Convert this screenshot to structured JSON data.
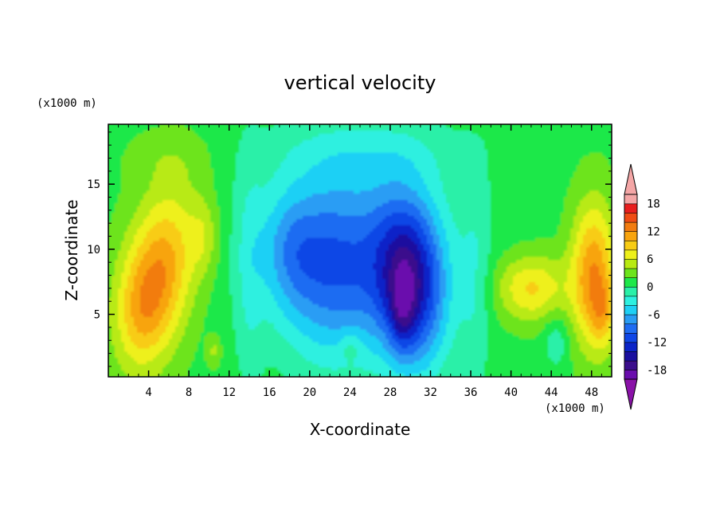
{
  "chart_data": {
    "type": "heatmap",
    "subtype": "filled-contour",
    "title": "vertical velocity",
    "xlabel": "X-coordinate",
    "ylabel": "Z-coordinate",
    "x_units": "(x1000 m)",
    "y_units": "(x1000 m)",
    "xlim": [
      0,
      50
    ],
    "ylim": [
      0.2,
      19.6
    ],
    "x_ticks": [
      4,
      8,
      12,
      16,
      20,
      24,
      28,
      32,
      36,
      40,
      44,
      48
    ],
    "y_ticks": [
      5,
      10,
      15
    ],
    "colorbar": {
      "levels": [
        -20,
        -18,
        -16,
        -14,
        -12,
        -10,
        -8,
        -6,
        -4,
        -2,
        0,
        2,
        4,
        6,
        8,
        10,
        12,
        14,
        16,
        18,
        20
      ],
      "tick_labels": [
        18,
        12,
        6,
        0,
        -6,
        -12,
        -18
      ],
      "colors": [
        "#6a0dad",
        "#3b0e8c",
        "#1a0f9f",
        "#0b24c8",
        "#0f46e6",
        "#1f6cf2",
        "#2a9df4",
        "#1fd0f5",
        "#2ef0e0",
        "#2af0a8",
        "#1ee84a",
        "#6de41c",
        "#b8ea12",
        "#eef01a",
        "#f8cc14",
        "#f8a40e",
        "#f27c10",
        "#f04c14",
        "#e81e1e",
        "#f4a6a6"
      ],
      "under_color": "#8a12a8",
      "over_color": "#f4a6a6"
    },
    "features": [
      {
        "kind": "updraft",
        "x": 5,
        "z": 8,
        "peak": 12
      },
      {
        "kind": "updraft",
        "x": 9.5,
        "z": 11,
        "peak": 6
      },
      {
        "kind": "updraft",
        "x": 10.5,
        "z": 2,
        "peak": 5
      },
      {
        "kind": "updraft",
        "x": 42,
        "z": 7,
        "peak": 8
      },
      {
        "kind": "updraft",
        "x": 48,
        "z": 8,
        "peak": 12
      },
      {
        "kind": "updraft",
        "x": 49,
        "z": 5,
        "peak": 12
      },
      {
        "kind": "downdraft",
        "x": 29.5,
        "z": 7,
        "peak": -16
      },
      {
        "kind": "downdraft",
        "x": 22,
        "z": 9,
        "peak": -9
      },
      {
        "kind": "downdraft",
        "x": 18,
        "z": 10,
        "peak": -8
      }
    ]
  }
}
